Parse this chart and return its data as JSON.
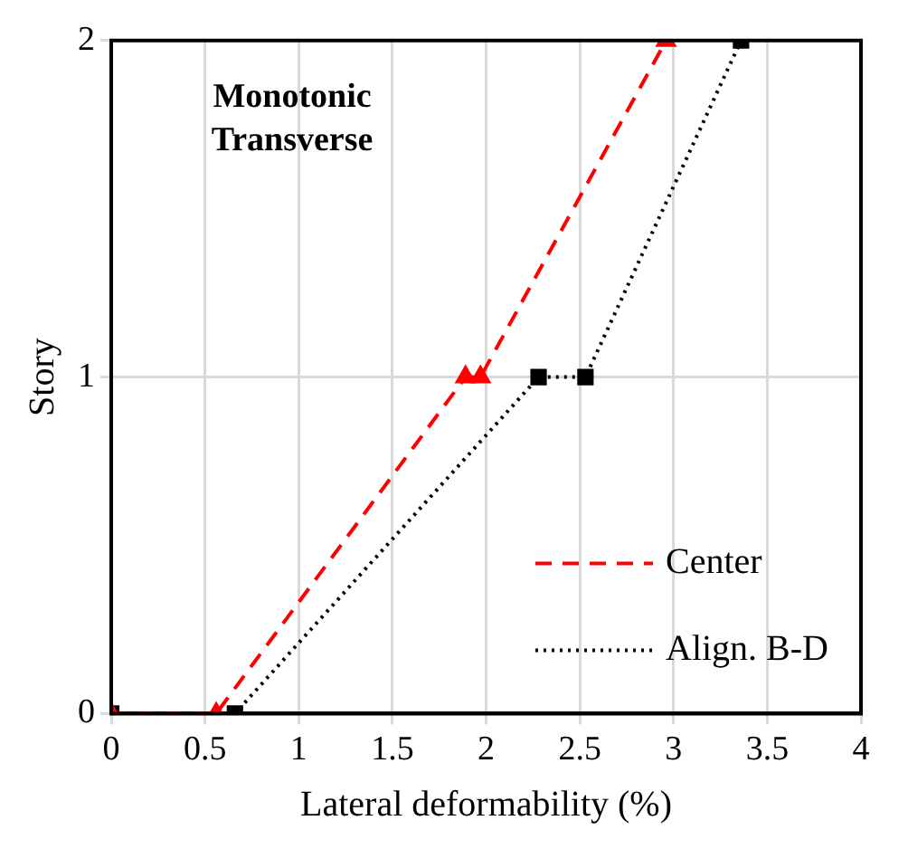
{
  "chart_data": {
    "type": "line",
    "title": "Monotonic\nTransverse",
    "xlabel": "Lateral deformability (%)",
    "ylabel": "Story",
    "xlim": [
      0,
      4
    ],
    "xticks": [
      0,
      0.5,
      1,
      1.5,
      2,
      2.5,
      3,
      3.5,
      4
    ],
    "ylim": [
      0,
      2
    ],
    "yticks": [
      0,
      1,
      2
    ],
    "grid": true,
    "legend": "bottom right",
    "series": [
      {
        "name": "Center",
        "color": "#ff0000",
        "marker": "triangle",
        "line_style": "dashed",
        "x": [
          0,
          0.56,
          1.89,
          1.97,
          2.96
        ],
        "values": [
          0,
          0,
          1,
          1,
          2
        ]
      },
      {
        "name": "Align. B-D",
        "color": "#000000",
        "marker": "square",
        "line_style": "dotted",
        "x": [
          0,
          0.66,
          2.28,
          2.53,
          3.36
        ],
        "values": [
          0,
          0,
          1,
          1,
          2
        ]
      }
    ]
  }
}
